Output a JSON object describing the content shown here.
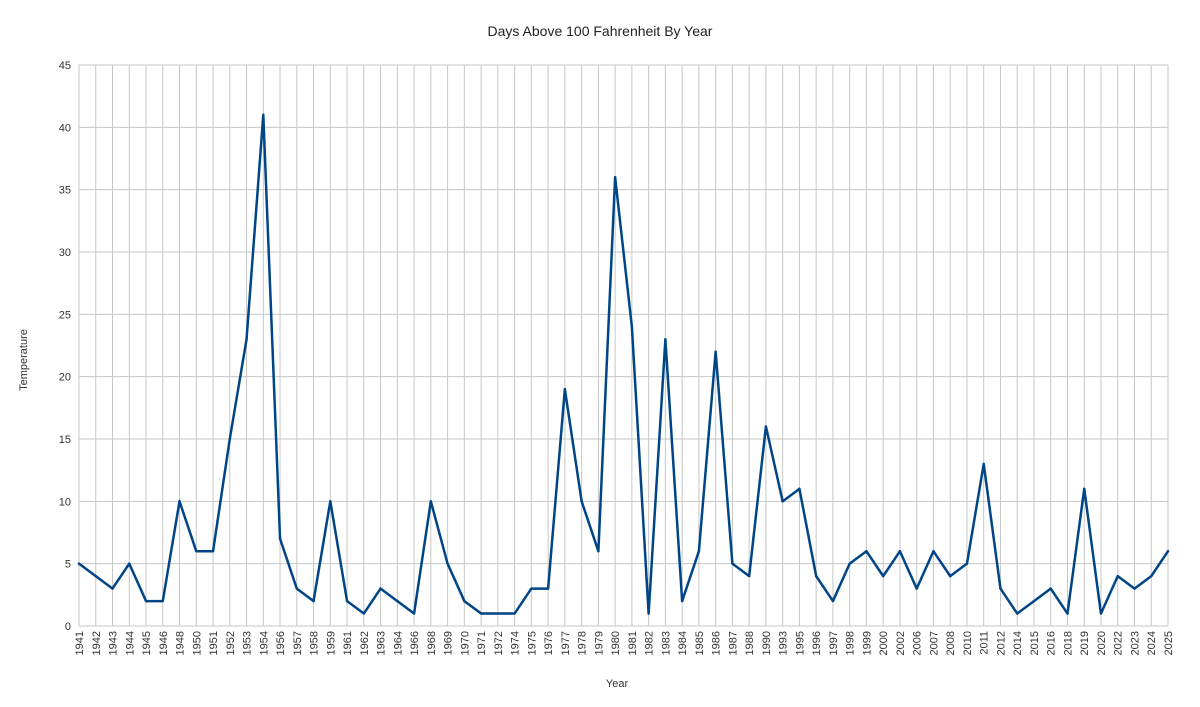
{
  "colors": {
    "series": "#004586",
    "grid": "#c7c7c7",
    "text": "#333333"
  },
  "chart_data": {
    "type": "line",
    "title": "Days Above 100 Fahrenheit By Year",
    "xlabel": "Year",
    "ylabel": "Temperature",
    "ylim": [
      0,
      45
    ],
    "yticks": [
      0,
      5,
      10,
      15,
      20,
      25,
      30,
      35,
      40,
      45
    ],
    "grid": true,
    "legend": "none",
    "categories": [
      "1941",
      "1942",
      "1943",
      "1944",
      "1945",
      "1946",
      "1948",
      "1950",
      "1951",
      "1952",
      "1953",
      "1954",
      "1956",
      "1957",
      "1958",
      "1959",
      "1961",
      "1962",
      "1963",
      "1964",
      "1966",
      "1968",
      "1969",
      "1970",
      "1971",
      "1972",
      "1974",
      "1975",
      "1976",
      "1977",
      "1978",
      "1979",
      "1980",
      "1981",
      "1982",
      "1983",
      "1984",
      "1985",
      "1986",
      "1987",
      "1988",
      "1990",
      "1993",
      "1995",
      "1996",
      "1997",
      "1998",
      "1999",
      "2000",
      "2002",
      "2006",
      "2007",
      "2008",
      "2010",
      "2011",
      "2012",
      "2014",
      "2015",
      "2016",
      "2018",
      "2019",
      "2020",
      "2022",
      "2023",
      "2024",
      "2025"
    ],
    "series": [
      {
        "values": [
          5,
          4,
          3,
          5,
          2,
          2,
          10,
          6,
          6,
          15,
          23,
          41,
          7,
          3,
          2,
          10,
          2,
          1,
          3,
          2,
          1,
          10,
          5,
          2,
          1,
          1,
          1,
          3,
          3,
          19,
          10,
          6,
          36,
          24,
          1,
          23,
          2,
          6,
          22,
          5,
          4,
          16,
          10,
          11,
          4,
          2,
          5,
          6,
          4,
          6,
          3,
          6,
          4,
          5,
          13,
          3,
          1,
          2,
          3,
          1,
          11,
          1,
          4,
          3,
          4,
          6
        ]
      }
    ]
  }
}
